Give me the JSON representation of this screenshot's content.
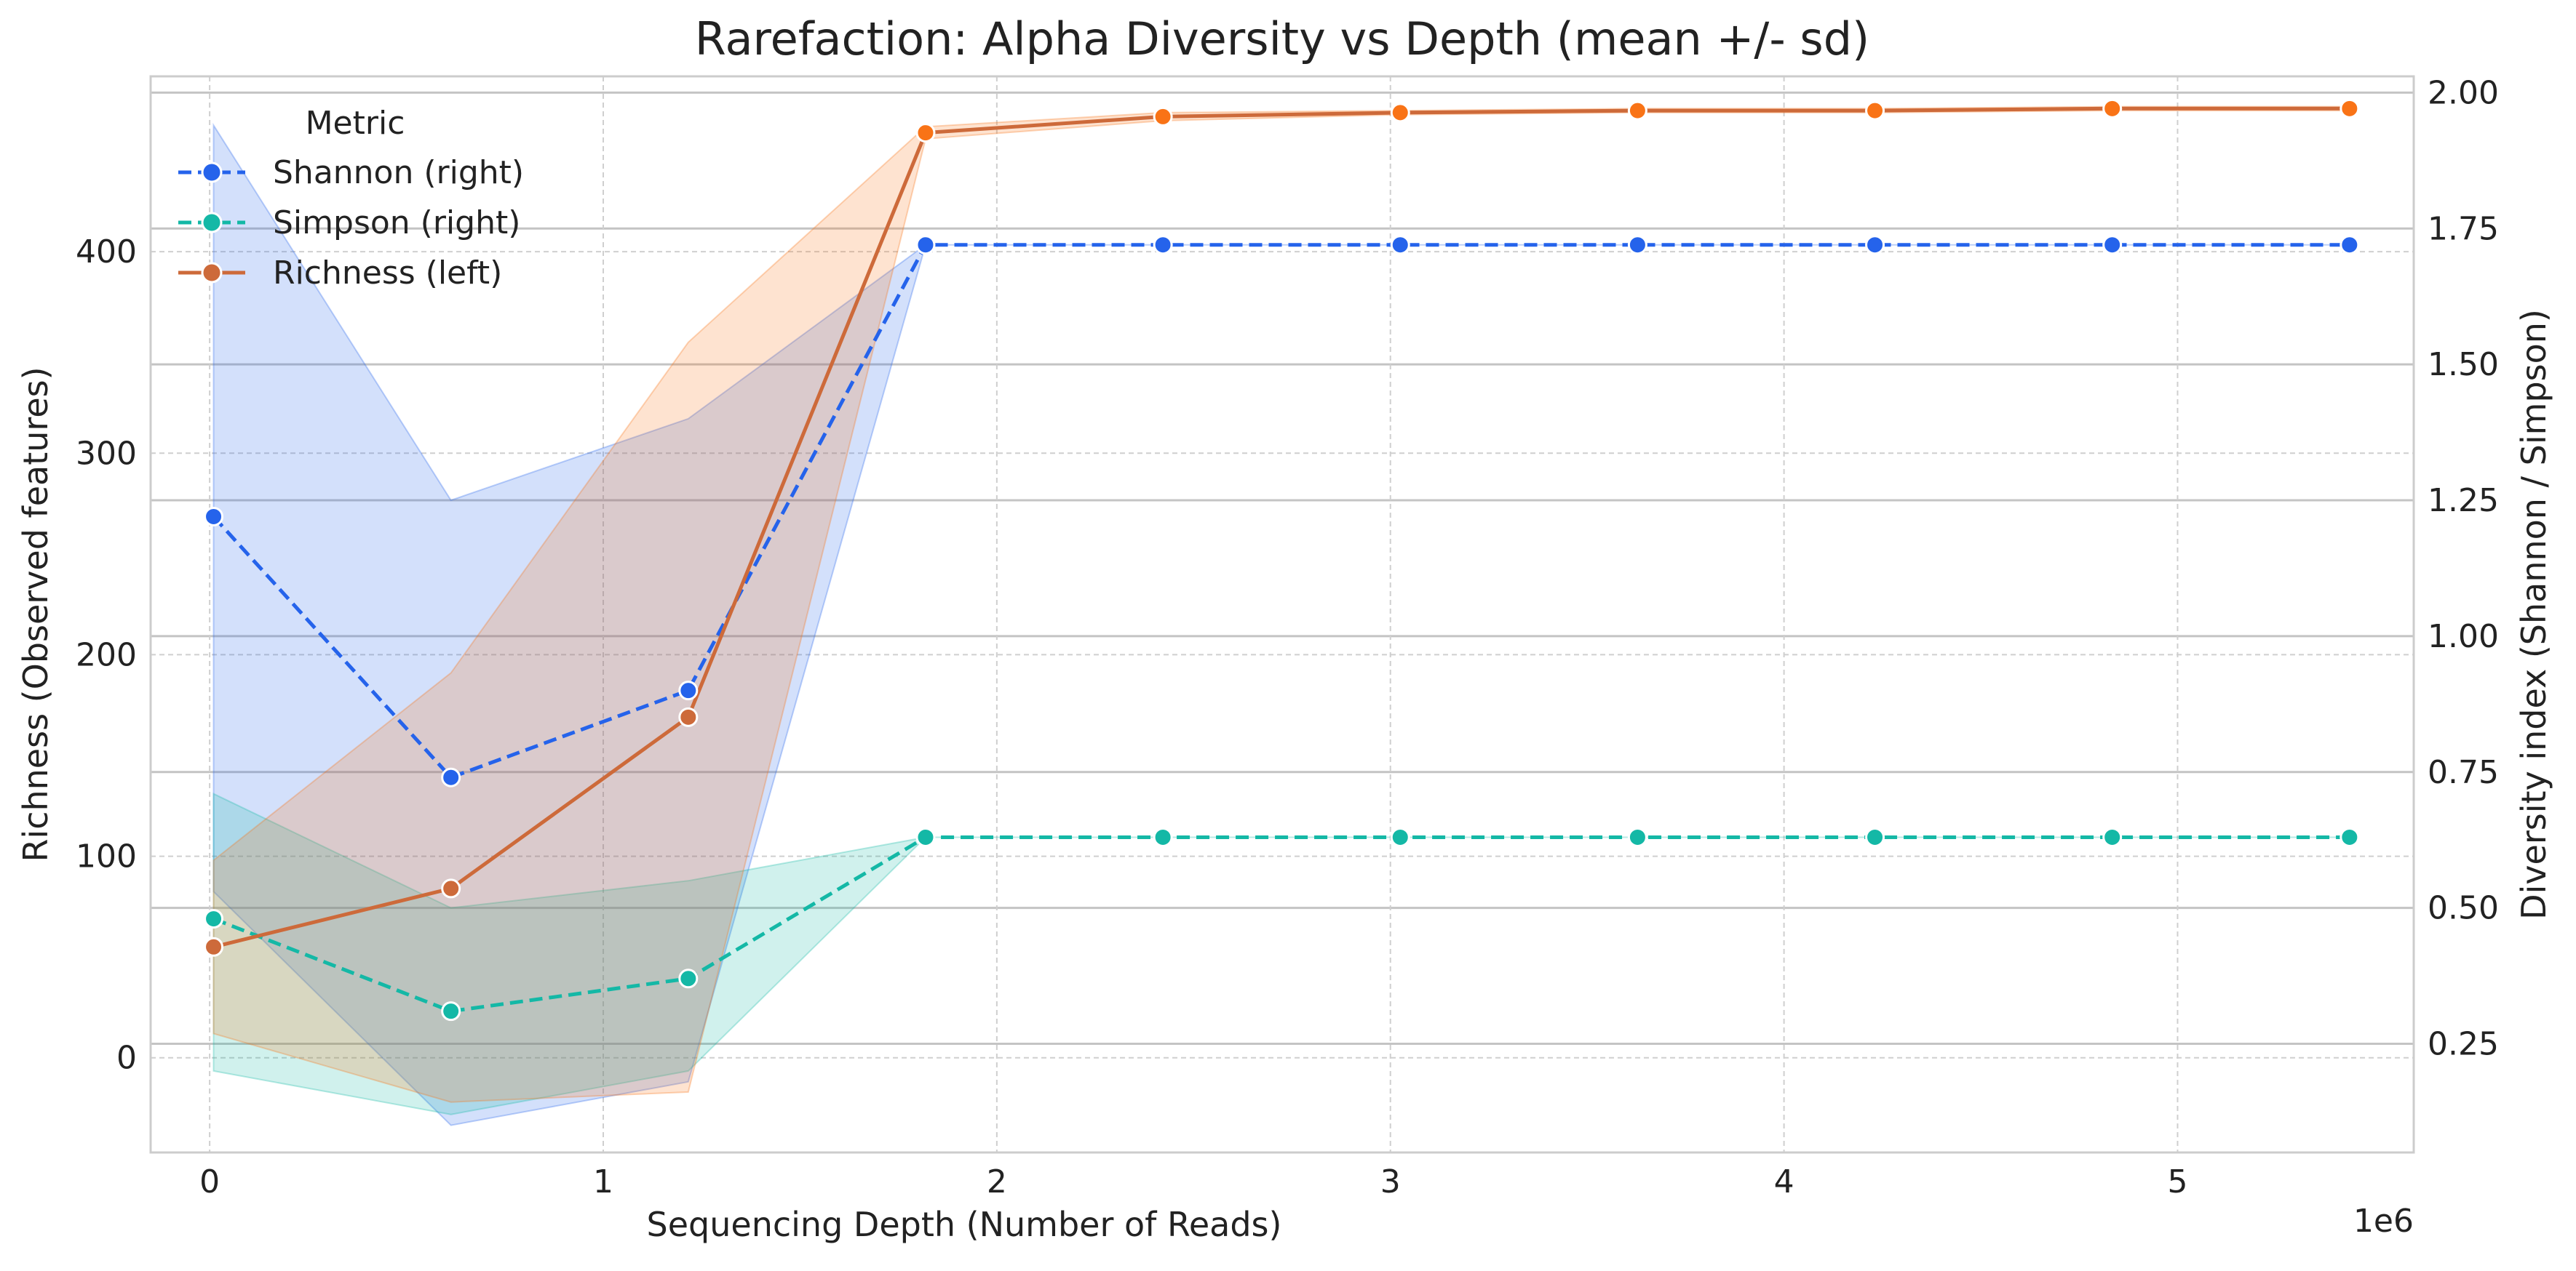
{
  "chart_data": {
    "type": "line",
    "title": "Rarefaction: Alpha Diversity vs Depth (mean +/- sd)",
    "xlabel": "Sequencing Depth (Number of Reads)",
    "ylabel_left": "Richness (Observed features)",
    "ylabel_right": "Diversity index (Shannon / Simpson)",
    "x_offset_label": "1e6",
    "x": [
      10000,
      613000,
      1216000,
      1819000,
      2422000,
      3025000,
      3628000,
      4231000,
      4834000,
      5437000
    ],
    "xlim": [
      -150000,
      5600000
    ],
    "ylim_left": [
      -47,
      487
    ],
    "ylim_right": [
      0.05,
      2.03
    ],
    "x_ticks": [
      0,
      1000000,
      2000000,
      3000000,
      4000000,
      5000000
    ],
    "x_tick_labels": [
      "0",
      "1",
      "2",
      "3",
      "4",
      "5"
    ],
    "y_left_ticks": [
      0,
      100,
      200,
      300,
      400
    ],
    "y_left_tick_labels": [
      "0",
      "100",
      "200",
      "300",
      "400"
    ],
    "y_right_ticks": [
      0.25,
      0.5,
      0.75,
      1.0,
      1.25,
      1.5,
      1.75,
      2.0
    ],
    "y_right_tick_labels": [
      "0.25",
      "0.50",
      "0.75",
      "1.00",
      "1.25",
      "1.50",
      "1.75",
      "2.00"
    ],
    "legend_title": "Metric",
    "legend_placement": "top-left",
    "grid": true,
    "series": [
      {
        "name": "Shannon (right)",
        "axis": "right",
        "color": "#2563eb",
        "dashed": true,
        "values": [
          1.22,
          0.74,
          0.9,
          1.72,
          1.72,
          1.72,
          1.72,
          1.72,
          1.72,
          1.72
        ],
        "lower": [
          0.53,
          0.1,
          0.18,
          1.72,
          1.72,
          1.72,
          1.72,
          1.72,
          1.72,
          1.72
        ],
        "upper": [
          1.94,
          1.25,
          1.4,
          1.72,
          1.72,
          1.72,
          1.72,
          1.72,
          1.72,
          1.72
        ]
      },
      {
        "name": "Simpson (right)",
        "axis": "right",
        "color": "#14b8a6",
        "dashed": true,
        "values": [
          0.48,
          0.31,
          0.37,
          0.63,
          0.63,
          0.63,
          0.63,
          0.63,
          0.63,
          0.63
        ],
        "lower": [
          0.2,
          0.12,
          0.2,
          0.63,
          0.63,
          0.63,
          0.63,
          0.63,
          0.63,
          0.63
        ],
        "upper": [
          0.71,
          0.5,
          0.55,
          0.63,
          0.63,
          0.63,
          0.63,
          0.63,
          0.63,
          0.63
        ]
      },
      {
        "name": "Richness (left)",
        "axis": "left",
        "color": "#f97316",
        "line_color": "#cd6a3a",
        "dashed": false,
        "values": [
          55,
          84,
          169,
          459,
          467,
          469,
          470,
          470,
          471,
          471
        ],
        "lower": [
          12,
          -22,
          -17,
          456,
          465,
          468,
          469,
          469,
          470,
          470
        ],
        "upper": [
          98,
          191,
          355,
          462,
          469,
          470,
          471,
          471,
          472,
          472
        ]
      }
    ]
  }
}
